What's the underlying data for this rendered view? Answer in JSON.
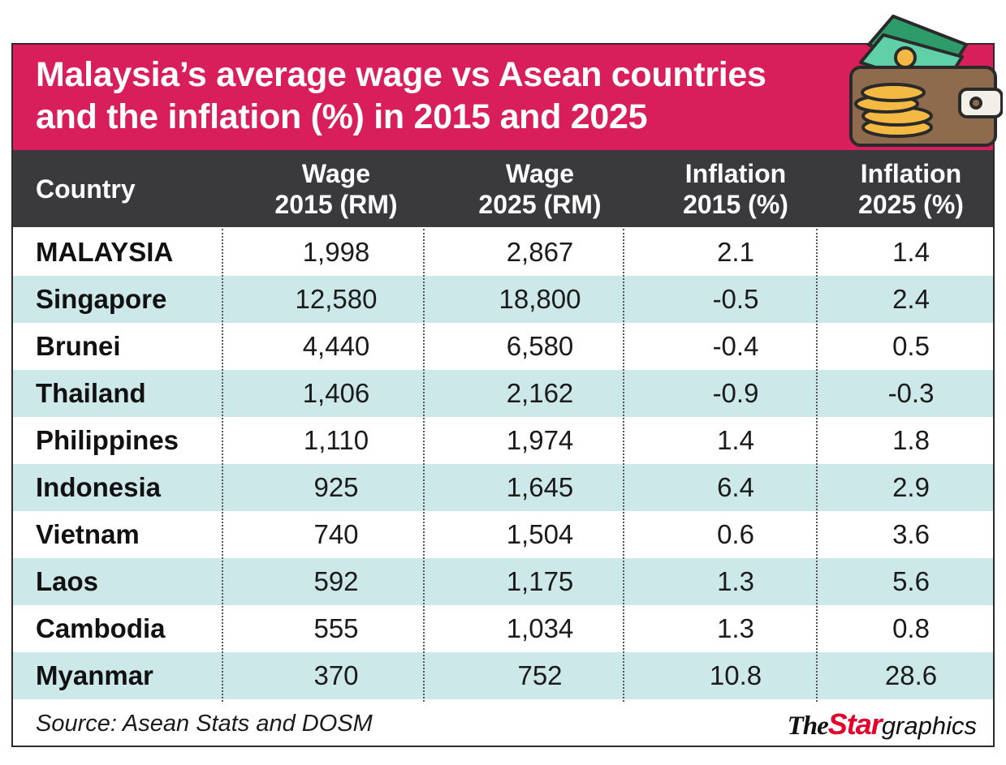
{
  "title": {
    "line1": "Malaysia’s average wage vs Asean countries",
    "line2": "and the inflation (%) in 2015 and 2025"
  },
  "colors": {
    "title_bg": "#d81e5b",
    "header_bg": "#3a3a3c",
    "alt_row_bg": "#cde8e8",
    "logo_red": "#e4002b"
  },
  "icon": "wallet-with-money-and-coins-icon",
  "columns": [
    {
      "line1": "Country",
      "line2": ""
    },
    {
      "line1": "Wage",
      "line2": "2015 (RM)"
    },
    {
      "line1": "Wage",
      "line2": "2025 (RM)"
    },
    {
      "line1": "Inflation",
      "line2": "2015 (%)"
    },
    {
      "line1": "Inflation",
      "line2": "2025 (%)"
    }
  ],
  "rows": [
    {
      "country": "MALAYSIA",
      "wage2015": "1,998",
      "wage2025": "2,867",
      "inf2015": "2.1",
      "inf2025": "1.4"
    },
    {
      "country": "Singapore",
      "wage2015": "12,580",
      "wage2025": "18,800",
      "inf2015": "-0.5",
      "inf2025": "2.4"
    },
    {
      "country": "Brunei",
      "wage2015": "4,440",
      "wage2025": "6,580",
      "inf2015": "-0.4",
      "inf2025": "0.5"
    },
    {
      "country": "Thailand",
      "wage2015": "1,406",
      "wage2025": "2,162",
      "inf2015": "-0.9",
      "inf2025": "-0.3"
    },
    {
      "country": "Philippines",
      "wage2015": "1,110",
      "wage2025": "1,974",
      "inf2015": "1.4",
      "inf2025": "1.8"
    },
    {
      "country": "Indonesia",
      "wage2015": "925",
      "wage2025": "1,645",
      "inf2015": "6.4",
      "inf2025": "2.9"
    },
    {
      "country": "Vietnam",
      "wage2015": "740",
      "wage2025": "1,504",
      "inf2015": "0.6",
      "inf2025": "3.6"
    },
    {
      "country": "Laos",
      "wage2015": "592",
      "wage2025": "1,175",
      "inf2015": "1.3",
      "inf2025": "5.6"
    },
    {
      "country": "Cambodia",
      "wage2015": "555",
      "wage2025": "1,034",
      "inf2015": "1.3",
      "inf2025": "0.8"
    },
    {
      "country": "Myanmar",
      "wage2015": "370",
      "wage2025": "752",
      "inf2015": "10.8",
      "inf2025": "28.6"
    }
  ],
  "source": "Source: Asean Stats and DOSM",
  "logo": {
    "the": "The",
    "star": "Star",
    "graphics": "graphics"
  },
  "chart_data": {
    "type": "table",
    "title": "Malaysia’s average wage vs Asean countries and the inflation (%) in 2015 and 2025",
    "columns": [
      "Country",
      "Wage 2015 (RM)",
      "Wage 2025 (RM)",
      "Inflation 2015 (%)",
      "Inflation 2025 (%)"
    ],
    "categories": [
      "MALAYSIA",
      "Singapore",
      "Brunei",
      "Thailand",
      "Philippines",
      "Indonesia",
      "Vietnam",
      "Laos",
      "Cambodia",
      "Myanmar"
    ],
    "series": [
      {
        "name": "Wage 2015 (RM)",
        "values": [
          1998,
          12580,
          4440,
          1406,
          1110,
          925,
          740,
          592,
          555,
          370
        ]
      },
      {
        "name": "Wage 2025 (RM)",
        "values": [
          2867,
          18800,
          6580,
          2162,
          1974,
          1645,
          1504,
          1175,
          1034,
          752
        ]
      },
      {
        "name": "Inflation 2015 (%)",
        "values": [
          2.1,
          -0.5,
          -0.4,
          -0.9,
          1.4,
          6.4,
          0.6,
          1.3,
          1.3,
          10.8
        ]
      },
      {
        "name": "Inflation 2025 (%)",
        "values": [
          1.4,
          2.4,
          0.5,
          -0.3,
          1.8,
          2.9,
          3.6,
          5.6,
          0.8,
          28.6
        ]
      }
    ],
    "source": "Source: Asean Stats and DOSM"
  }
}
